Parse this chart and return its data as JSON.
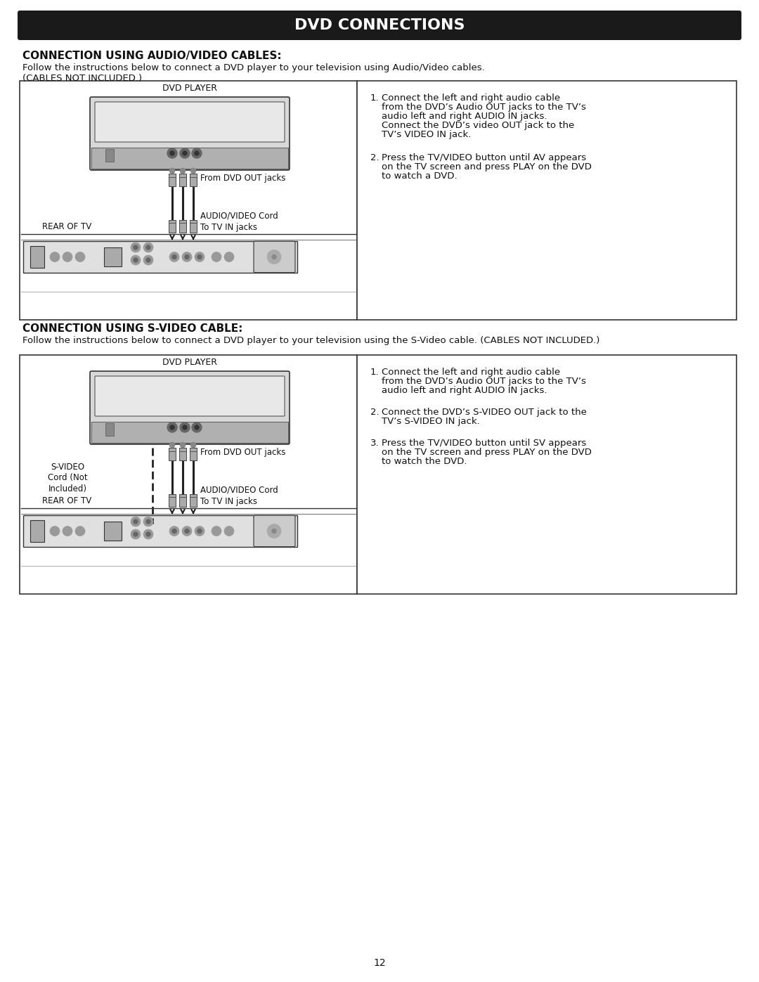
{
  "page_bg": "#ffffff",
  "title_bg": "#1a1a1a",
  "title_text": "DVD CONNECTIONS",
  "title_color": "#ffffff",
  "title_fontsize": 16,
  "section1_heading": "CONNECTION USING AUDIO/VIDEO CABLES:",
  "section1_desc1": "Follow the instructions below to connect a DVD player to your television using Audio/Video cables.",
  "section1_desc2": "(CABLES NOT INCLUDED.)",
  "section2_heading": "CONNECTION USING S-VIDEO CABLE:",
  "section2_desc": "Follow the instructions below to connect a DVD player to your television using the S-Video cable. (CABLES NOT INCLUDED.)",
  "section1_instructions": [
    "Connect the left and right audio cable from the DVD’s Audio OUT jacks to the TV’s audio left and right AUDIO IN jacks. Connect the DVD’s video OUT jack to the TV’s VIDEO IN jack.",
    "Press the TV/VIDEO button until AV appears on the TV screen and press PLAY on the DVD to watch a DVD."
  ],
  "section2_instructions": [
    "Connect the left and right audio cable from the DVD’s Audio OUT jacks to the TV’s audio left and right AUDIO IN jacks.",
    "Connect the DVD’s S-VIDEO OUT jack to the TV’s S-VIDEO IN jack.",
    "Press the TV/VIDEO button until SV appears on the TV screen and press PLAY on the DVD to watch the DVD."
  ],
  "dvd_player_label": "DVD PLAYER",
  "from_dvd_label": "From DVD OUT jacks",
  "audio_video_cord_label": "AUDIO/VIDEO Cord",
  "rear_of_tv_label": "REAR OF TV",
  "to_tv_label": "To TV IN jacks",
  "s_video_label": "S-VIDEO\nCord (Not\nIncluded)",
  "page_number": "12",
  "body_fontsize": 9.5,
  "heading_fontsize": 11,
  "label_fontsize": 8.5,
  "border_color": "#333333",
  "device_color": "#cccccc",
  "device_dark": "#999999",
  "cable_color": "#222222"
}
